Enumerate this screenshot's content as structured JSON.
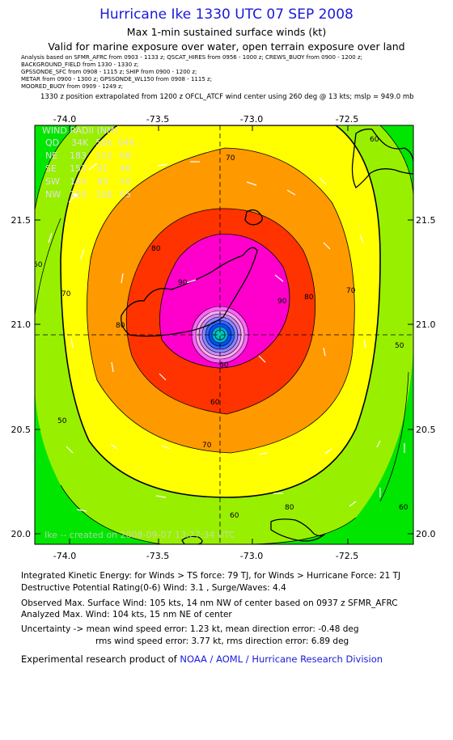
{
  "header": {
    "title": "Hurricane Ike 1330 UTC 07 SEP 2008",
    "subtitle": "Max 1-min sustained surface winds (kt)",
    "valid": "Valid for marine exposure over water, open terrain exposure over land"
  },
  "analysis_lines": [
    "Analysis based on  SFMR_AFRC from 0903 - 1133 z;  QSCAT_HIRES from 0956 - 1000 z;  CREWS_BUOY from 0900 - 1200 z;",
    "BACKGROUND_FIELD from 1330 - 1330 z;",
    "GPSSONDE_SFC from 0908 - 1115 z;  SHIP from 0900 - 1200 z;",
    "METAR from 0900 - 1300 z;  GPSSONDE_WL150 from 0908 - 1115 z;",
    "MOORED_BUOY from 0909 - 1249 z;"
  ],
  "position_note": "1330 z position extrapolated from 1200 z OFCL_ATCF wind center using 260 deg @ 13 kts; mslp = 949.0 mb",
  "map": {
    "lon_ticks": [
      "-74.0",
      "-73.5",
      "-73.0",
      "-72.5"
    ],
    "lat_ticks": [
      "21.5",
      "21.0",
      "20.5",
      "20.0"
    ],
    "contour_labels": [
      "60",
      "70",
      "80",
      "90",
      "60",
      "70",
      "80",
      "90",
      "60",
      "70",
      "80",
      "50",
      "60",
      "70",
      "80",
      "60",
      "50",
      "60"
    ],
    "center": {
      "lon": -73.12,
      "lat": 20.95
    },
    "watermark": "Ike -- created on 2008-09-07 13:27:34 UTC",
    "wind_radii": {
      "title": "WIND RADII (NM)",
      "header": [
        "QD",
        "34K",
        "50K",
        "64K"
      ],
      "rows": [
        [
          "NE",
          "183",
          "112",
          "68"
        ],
        [
          "SE",
          "153",
          "91",
          "46"
        ],
        [
          "SW",
          "140",
          "85",
          "50"
        ],
        [
          "NW",
          "159",
          "108",
          "65"
        ]
      ]
    },
    "colors": {
      "band_50": "#00e600",
      "band_60": "#98f000",
      "band_70": "#ffff00",
      "band_80": "#ff9900",
      "band_90": "#ff3300",
      "band_100": "#ff00cc",
      "core": "#0050ff"
    }
  },
  "info": {
    "ike": "Integrated Kinetic Energy:  for Winds > TS force: 79 TJ,  for Winds > Hurricane Force: 21 TJ",
    "dpr": "Destructive Potential Rating(0-6)   Wind: 3.1 , Surge/Waves: 4.4",
    "obs_max": "Observed Max. Surface Wind: 105 kts, 14 nm NW of center based on 0937 z SFMR_AFRC",
    "analyzed_max": "Analyzed Max. Wind: 104 kts, 15 nm NE of center",
    "uncertainty_1": "Uncertainty -> mean wind speed error: 1.23 kt,   mean direction error:  -0.48 deg",
    "uncertainty_2": "rms wind speed error: 3.77 kt,   rms direction error: 6.89 deg"
  },
  "footer": {
    "prefix": "Experimental research product of ",
    "link": "NOAA / AOML / Hurricane Research Division"
  }
}
